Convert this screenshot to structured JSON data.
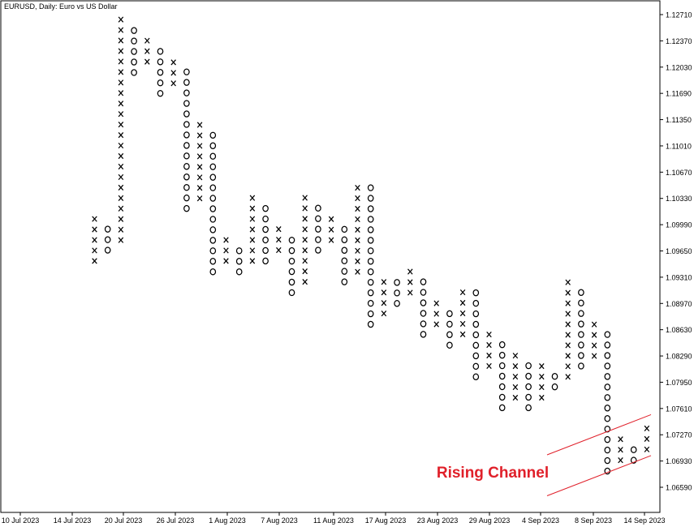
{
  "window": {
    "title": "EURUSD, Daily:  Euro vs US Dollar"
  },
  "chart_data": {
    "type": "point-and-figure",
    "symbol": "EURUSD",
    "timeframe": "Daily",
    "title": "EURUSD, Daily:  Euro vs US Dollar",
    "box_size": 0.00136,
    "y_ticks": [
      1.1271,
      1.1237,
      1.1203,
      1.1169,
      1.1135,
      1.1101,
      1.1067,
      1.1033,
      1.0999,
      1.0965,
      1.0931,
      1.0897,
      1.0863,
      1.0829,
      1.0795,
      1.0761,
      1.0727,
      1.0693,
      1.0659
    ],
    "y_tick_labels": [
      "1.12710",
      "1.12370",
      "1.12030",
      "1.11690",
      "1.11350",
      "1.11010",
      "1.10670",
      "1.10330",
      "1.09990",
      "1.09650",
      "1.09310",
      "1.08970",
      "1.08630",
      "1.08290",
      "1.07950",
      "1.07610",
      "1.07270",
      "1.06930",
      "1.06590"
    ],
    "x_labels": [
      "10 Jul 2023",
      "14 Jul 2023",
      "20 Jul 2023",
      "26 Jul 2023",
      "1 Aug 2023",
      "7 Aug 2023",
      "11 Aug 2023",
      "17 Aug 2023",
      "23 Aug 2023",
      "29 Aug 2023",
      "4 Sep 2023",
      "8 Sep 2023",
      "14 Sep 2023"
    ],
    "ylim": [
      1.063,
      1.129
    ],
    "columns": [
      {
        "type": "X",
        "low": 1.0952,
        "high": 1.1006
      },
      {
        "type": "O",
        "low": 1.0966,
        "high": 1.0993
      },
      {
        "type": "X",
        "low": 1.0979,
        "high": 1.1264
      },
      {
        "type": "O",
        "low": 1.1196,
        "high": 1.125
      },
      {
        "type": "X",
        "low": 1.121,
        "high": 1.1237
      },
      {
        "type": "O",
        "low": 1.1169,
        "high": 1.1223
      },
      {
        "type": "X",
        "low": 1.1182,
        "high": 1.121
      },
      {
        "type": "O",
        "low": 1.102,
        "high": 1.1196
      },
      {
        "type": "X",
        "low": 1.1033,
        "high": 1.1128
      },
      {
        "type": "O",
        "low": 1.0938,
        "high": 1.1115
      },
      {
        "type": "X",
        "low": 1.0952,
        "high": 1.0979
      },
      {
        "type": "O",
        "low": 1.0938,
        "high": 1.0966
      },
      {
        "type": "X",
        "low": 1.0952,
        "high": 1.1033
      },
      {
        "type": "O",
        "low": 1.0952,
        "high": 1.102
      },
      {
        "type": "X",
        "low": 1.0966,
        "high": 1.0993
      },
      {
        "type": "O",
        "low": 1.0911,
        "high": 1.0979
      },
      {
        "type": "X",
        "low": 1.0925,
        "high": 1.1033
      },
      {
        "type": "O",
        "low": 1.0966,
        "high": 1.102
      },
      {
        "type": "X",
        "low": 1.0979,
        "high": 1.1006
      },
      {
        "type": "O",
        "low": 1.0925,
        "high": 1.0993
      },
      {
        "type": "X",
        "low": 1.0938,
        "high": 1.1047
      },
      {
        "type": "O",
        "low": 1.087,
        "high": 1.1047
      },
      {
        "type": "X",
        "low": 1.0884,
        "high": 1.0925
      },
      {
        "type": "O",
        "low": 1.0897,
        "high": 1.0925
      },
      {
        "type": "X",
        "low": 1.0911,
        "high": 1.0938
      },
      {
        "type": "O",
        "low": 1.0857,
        "high": 1.0925
      },
      {
        "type": "X",
        "low": 1.087,
        "high": 1.0897
      },
      {
        "type": "O",
        "low": 1.0843,
        "high": 1.0884
      },
      {
        "type": "X",
        "low": 1.0857,
        "high": 1.0911
      },
      {
        "type": "O",
        "low": 1.0802,
        "high": 1.0911
      },
      {
        "type": "X",
        "low": 1.0816,
        "high": 1.0857
      },
      {
        "type": "O",
        "low": 1.0762,
        "high": 1.0843
      },
      {
        "type": "X",
        "low": 1.0775,
        "high": 1.0829
      },
      {
        "type": "O",
        "low": 1.0762,
        "high": 1.0816
      },
      {
        "type": "X",
        "low": 1.0775,
        "high": 1.0816
      },
      {
        "type": "O",
        "low": 1.0789,
        "high": 1.0802
      },
      {
        "type": "X",
        "low": 1.0802,
        "high": 1.0925
      },
      {
        "type": "O",
        "low": 1.0816,
        "high": 1.0911
      },
      {
        "type": "X",
        "low": 1.0829,
        "high": 1.087
      },
      {
        "type": "O",
        "low": 1.068,
        "high": 1.0857
      },
      {
        "type": "X",
        "low": 1.0694,
        "high": 1.0721
      },
      {
        "type": "O",
        "low": 1.0694,
        "high": 1.0708
      },
      {
        "type": "X",
        "low": 1.0708,
        "high": 1.0735
      }
    ],
    "annotation": {
      "text": "Rising Channel",
      "color": "#e0202a"
    },
    "channel_lines": [
      {
        "x1": "4 Sep 2023",
        "y1": 1.0648,
        "x2": "14 Sep 2023",
        "y2": 1.07
      },
      {
        "x1": "4 Sep 2023",
        "y1": 1.0701,
        "x2": "14 Sep 2023",
        "y2": 1.0753
      }
    ],
    "colors": {
      "axis": "#000000",
      "marks": "#000000",
      "channel": "#e0202a",
      "background": "#ffffff"
    }
  }
}
